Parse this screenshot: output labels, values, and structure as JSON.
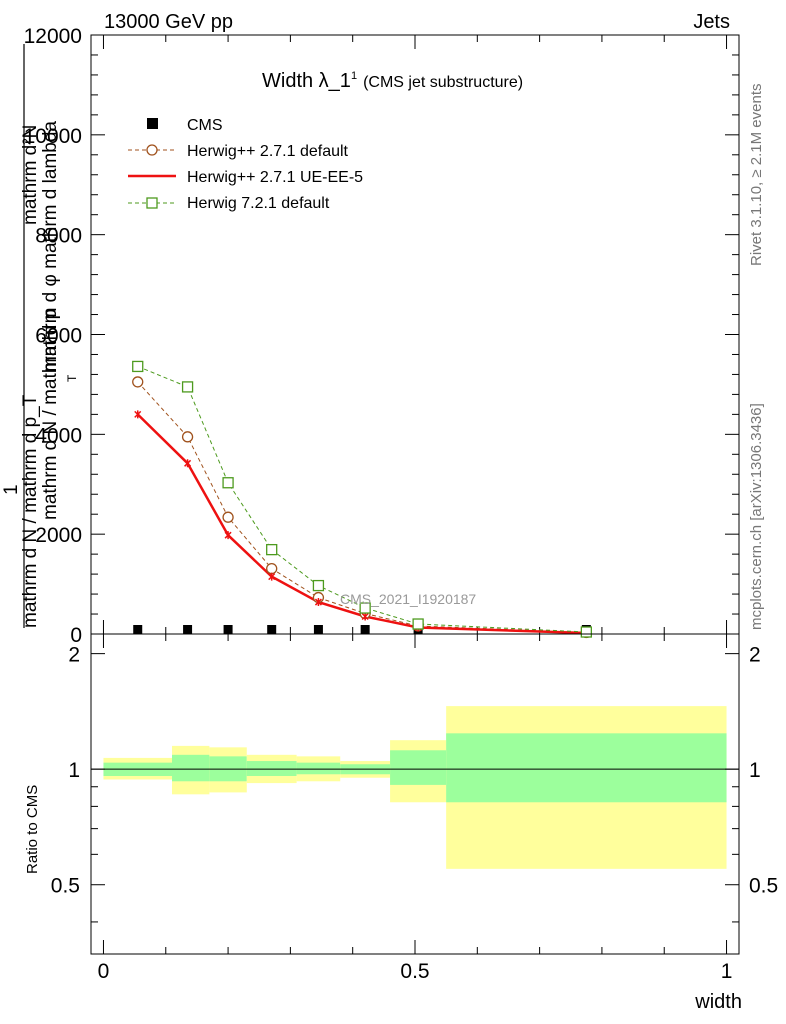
{
  "header": {
    "left": "13000 GeV pp",
    "right": "Jets"
  },
  "side": {
    "rivet": "Rivet 3.1.10, ≥ 2.1M events",
    "mcplots": "mcplots.cern.ch [arXiv:1306.3436]"
  },
  "chart_data": [
    {
      "type": "line",
      "title": "Width λ_1",
      "title_sup": "1",
      "subtitle": "(CMS jet substructure)",
      "watermark": "CMS_2021_I1920187",
      "ylabel_num": "mathrm d²N",
      "ylabel_den": "mathrm d p_T mathrm d lambda",
      "ylabel_prefix": "1",
      "ylabel_prefix_den": "mathrm d N / mathrm d p_T",
      "ylabel_left": "mathrm d N / mathrm d p",
      "ylabel_left_sub": "T",
      "ylabel_right": "mathrm d φ  mathrm d lambda",
      "ylim": [
        0,
        12000
      ],
      "yticks": [
        0,
        2000,
        4000,
        6000,
        8000,
        10000,
        12000
      ],
      "ytick_labels": [
        "0",
        "2000",
        "4000",
        "6000",
        "8000",
        "10000",
        "12000"
      ],
      "xlim": [
        -0.02,
        1.02
      ],
      "legend_placement": "top-left",
      "series": [
        {
          "name": "CMS",
          "color": "#000000",
          "marker": "filled-square",
          "x": [
            0.055,
            0.135,
            0.2,
            0.27,
            0.345,
            0.42,
            0.505,
            0.775
          ],
          "values": [
            0,
            0,
            0,
            0,
            0,
            0,
            0,
            0
          ]
        },
        {
          "name": "Herwig++ 2.7.1 default",
          "color": "#a0521d",
          "marker": "open-circle",
          "line": "dashed",
          "x": [
            0.055,
            0.135,
            0.2,
            0.27,
            0.345,
            0.42,
            0.505,
            0.775
          ],
          "values": [
            5050,
            3950,
            2340,
            1310,
            730,
            410,
            160,
            30
          ]
        },
        {
          "name": "Herwig++ 2.7.1 UE-EE-5",
          "color": "#ee1111",
          "marker": "small-star",
          "line": "solid",
          "x": [
            0.055,
            0.135,
            0.2,
            0.27,
            0.345,
            0.42,
            0.505,
            0.775
          ],
          "values": [
            4400,
            3420,
            1980,
            1150,
            640,
            350,
            130,
            20
          ]
        },
        {
          "name": "Herwig 7.2.1 default",
          "color": "#4d9a1e",
          "marker": "open-square",
          "line": "dashed",
          "x": [
            0.055,
            0.135,
            0.2,
            0.27,
            0.345,
            0.42,
            0.505,
            0.775
          ],
          "values": [
            5360,
            4950,
            3030,
            1690,
            970,
            520,
            200,
            40
          ]
        }
      ]
    },
    {
      "type": "area",
      "ylabel": "Ratio to CMS",
      "xlabel": "width",
      "xlim": [
        -0.02,
        1.02
      ],
      "xticks": [
        0,
        0.5,
        1
      ],
      "xtick_labels": [
        "0",
        "0.5",
        "1"
      ],
      "ylim": [
        0.33,
        2.25
      ],
      "yticks": [
        0.5,
        1,
        2
      ],
      "ytick_labels": [
        "0.5",
        "1",
        "2"
      ],
      "reference_line": 1,
      "bins": [
        {
          "x0": 0.0,
          "x1": 0.11,
          "inner": [
            0.96,
            1.04
          ],
          "outer": [
            0.94,
            1.07
          ]
        },
        {
          "x0": 0.11,
          "x1": 0.17,
          "inner": [
            0.93,
            1.09
          ],
          "outer": [
            0.86,
            1.15
          ]
        },
        {
          "x0": 0.17,
          "x1": 0.23,
          "inner": [
            0.93,
            1.08
          ],
          "outer": [
            0.87,
            1.14
          ]
        },
        {
          "x0": 0.23,
          "x1": 0.31,
          "inner": [
            0.96,
            1.05
          ],
          "outer": [
            0.92,
            1.09
          ]
        },
        {
          "x0": 0.31,
          "x1": 0.38,
          "inner": [
            0.97,
            1.04
          ],
          "outer": [
            0.93,
            1.08
          ]
        },
        {
          "x0": 0.38,
          "x1": 0.46,
          "inner": [
            0.97,
            1.03
          ],
          "outer": [
            0.95,
            1.05
          ]
        },
        {
          "x0": 0.46,
          "x1": 0.55,
          "inner": [
            0.91,
            1.12
          ],
          "outer": [
            0.82,
            1.19
          ]
        },
        {
          "x0": 0.55,
          "x1": 1.0,
          "inner": [
            0.82,
            1.24
          ],
          "outer": [
            0.55,
            1.46
          ]
        }
      ],
      "band_colors": {
        "inner": "#9cff9c",
        "outer": "#ffff9c"
      }
    }
  ]
}
